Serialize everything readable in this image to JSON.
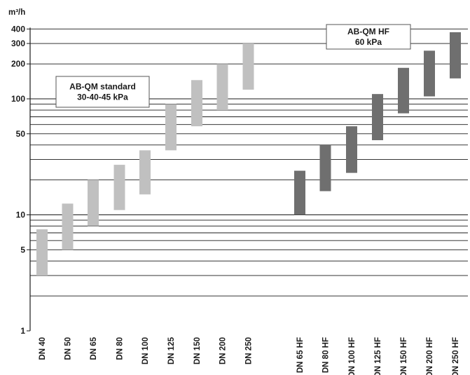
{
  "chart_data": {
    "type": "bar",
    "subtype": "floating-range",
    "yscale": "log",
    "ylim": [
      1,
      400
    ],
    "ylabel": "m³/h",
    "ytick_labels": [
      {
        "value": 1,
        "label": "1"
      },
      {
        "value": 5,
        "label": "5"
      },
      {
        "value": 10,
        "label": "10"
      },
      {
        "value": 50,
        "label": "50"
      },
      {
        "value": 100,
        "label": "100"
      },
      {
        "value": 200,
        "label": "200"
      },
      {
        "value": 300,
        "label": "300"
      },
      {
        "value": 400,
        "label": "400"
      }
    ],
    "gridlines": [
      2,
      3,
      4,
      5,
      6,
      7,
      8,
      9,
      10,
      20,
      30,
      40,
      50,
      60,
      70,
      80,
      90,
      100,
      200,
      300,
      400
    ],
    "grid": true,
    "series": [
      {
        "name": "AB-QM standard",
        "legend_lines": [
          "AB-QM standard",
          "30-40-45 kPa"
        ],
        "legend_position": "upper-left",
        "color": "#c0c0c0",
        "points": [
          {
            "category": "DN 40",
            "min": 3,
            "max": 7.5
          },
          {
            "category": "DN 50",
            "min": 5,
            "max": 12.5
          },
          {
            "category": "DN 65",
            "min": 8,
            "max": 20
          },
          {
            "category": "DN 80",
            "min": 11,
            "max": 27
          },
          {
            "category": "DN 100",
            "min": 15,
            "max": 36
          },
          {
            "category": "DN 125",
            "min": 36,
            "max": 90
          },
          {
            "category": "DN 150",
            "min": 58,
            "max": 145
          },
          {
            "category": "DN 200",
            "min": 80,
            "max": 200
          },
          {
            "category": "DN 250",
            "min": 120,
            "max": 300
          }
        ]
      },
      {
        "name": "AB-QM HF",
        "legend_lines": [
          "AB-QM HF",
          "60 kPa"
        ],
        "legend_position": "top-center",
        "color": "#6f6f6f",
        "points": [
          {
            "category": "DN 65 HF",
            "min": 10,
            "max": 24
          },
          {
            "category": "DN 80 HF",
            "min": 16,
            "max": 40
          },
          {
            "category": "DN 100 HF",
            "min": 23,
            "max": 58
          },
          {
            "category": "DN 125 HF",
            "min": 44,
            "max": 110
          },
          {
            "category": "DN 150 HF",
            "min": 75,
            "max": 185
          },
          {
            "category": "DN 200 HF",
            "min": 105,
            "max": 260
          },
          {
            "category": "DN 250 HF",
            "min": 150,
            "max": 375
          }
        ]
      }
    ]
  }
}
